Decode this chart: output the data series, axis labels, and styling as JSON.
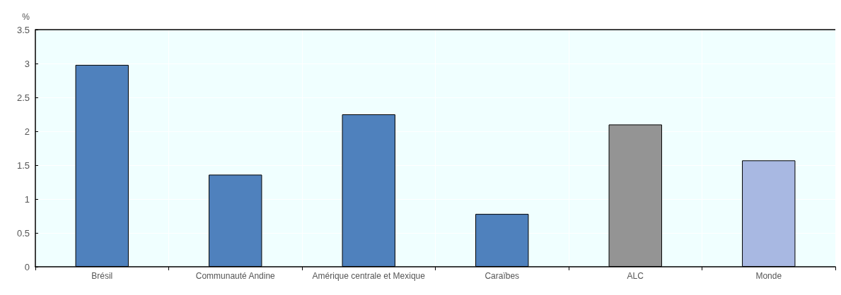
{
  "chart_data": {
    "type": "bar",
    "ylabel": "%",
    "categories": [
      "Brésil",
      "Communauté Andine",
      "Amérique centrale et Mexique",
      "Caraïbes",
      "ALC",
      "Monde"
    ],
    "values": [
      2.98,
      1.36,
      2.25,
      0.78,
      2.1,
      1.57
    ],
    "colors": [
      "#4f81bd",
      "#4f81bd",
      "#4f81bd",
      "#4f81bd",
      "#949494",
      "#a8b8e2"
    ],
    "ylim": [
      0,
      3.5
    ],
    "yticks": [
      0,
      0.5,
      1,
      1.5,
      2,
      2.5,
      3,
      3.5
    ],
    "grid": true
  }
}
